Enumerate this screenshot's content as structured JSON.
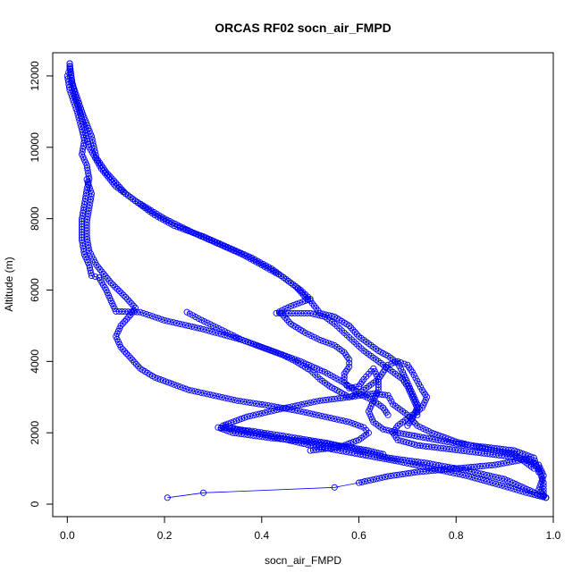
{
  "chart_data": {
    "type": "scatter",
    "title": "ORCAS RF02 socn_air_FMPD",
    "xlabel": "socn_air_FMPD",
    "ylabel": "Altitude (m)",
    "xlim": [
      -0.03,
      1.0
    ],
    "ylim": [
      -350,
      12650
    ],
    "xticks": [
      "0.0",
      "0.2",
      "0.4",
      "0.6",
      "0.8",
      "1.0"
    ],
    "xtick_values": [
      0.0,
      0.2,
      0.4,
      0.6,
      0.8,
      1.0
    ],
    "yticks": [
      "0",
      "2000",
      "4000",
      "6000",
      "8000",
      "10000",
      "12000"
    ],
    "ytick_values": [
      0,
      2000,
      4000,
      6000,
      8000,
      10000,
      12000
    ],
    "grid": false,
    "marker": "open-circle",
    "color": "#0000ff",
    "series": [
      {
        "points": [
          [
            0.206,
            180
          ],
          [
            0.28,
            320
          ],
          [
            0.55,
            470
          ],
          [
            0.6,
            600
          ],
          [
            0.66,
            780
          ],
          [
            0.72,
            900
          ],
          [
            0.8,
            1000
          ],
          [
            0.88,
            1100
          ],
          [
            0.94,
            1250
          ],
          [
            0.97,
            1100
          ],
          [
            0.98,
            800
          ],
          [
            0.97,
            400
          ],
          [
            0.985,
            180
          ]
        ]
      },
      {
        "points": [
          [
            0.985,
            180
          ],
          [
            0.95,
            300
          ],
          [
            0.9,
            500
          ],
          [
            0.82,
            800
          ],
          [
            0.75,
            1000
          ],
          [
            0.68,
            1200
          ],
          [
            0.62,
            1350
          ],
          [
            0.58,
            1450
          ],
          [
            0.5,
            1650
          ],
          [
            0.42,
            1900
          ],
          [
            0.35,
            2100
          ],
          [
            0.32,
            2200
          ],
          [
            0.37,
            2450
          ],
          [
            0.45,
            2700
          ],
          [
            0.52,
            2900
          ],
          [
            0.58,
            3000
          ],
          [
            0.63,
            3100
          ],
          [
            0.66,
            3050
          ],
          [
            0.67,
            2800
          ],
          [
            0.7,
            2500
          ],
          [
            0.72,
            2200
          ],
          [
            0.75,
            2000
          ],
          [
            0.8,
            1750
          ],
          [
            0.86,
            1550
          ],
          [
            0.92,
            1400
          ],
          [
            0.96,
            1000
          ]
        ]
      },
      {
        "points": [
          [
            0.985,
            180
          ],
          [
            0.9,
            700
          ],
          [
            0.82,
            950
          ],
          [
            0.74,
            1150
          ],
          [
            0.66,
            1300
          ],
          [
            0.6,
            1500
          ],
          [
            0.54,
            1700
          ],
          [
            0.45,
            1900
          ],
          [
            0.38,
            2050
          ],
          [
            0.31,
            2150
          ],
          [
            0.34,
            2000
          ],
          [
            0.42,
            1850
          ],
          [
            0.5,
            1750
          ],
          [
            0.58,
            1600
          ],
          [
            0.62,
            1500
          ],
          [
            0.65,
            1400
          ]
        ]
      },
      {
        "points": [
          [
            0.005,
            12350
          ],
          [
            0.005,
            12200
          ],
          [
            0.0,
            12000
          ],
          [
            0.005,
            11600
          ],
          [
            0.02,
            11000
          ],
          [
            0.03,
            10500
          ],
          [
            0.035,
            10200
          ],
          [
            0.03,
            9800
          ],
          [
            0.04,
            9500
          ],
          [
            0.045,
            9120
          ],
          [
            0.04,
            8800
          ],
          [
            0.035,
            8400
          ],
          [
            0.03,
            8000
          ],
          [
            0.03,
            7700
          ],
          [
            0.03,
            7400
          ],
          [
            0.035,
            7000
          ],
          [
            0.045,
            6700
          ],
          [
            0.05,
            6400
          ],
          [
            0.065,
            6350
          ],
          [
            0.08,
            6000
          ],
          [
            0.09,
            5700
          ],
          [
            0.1,
            5400
          ],
          [
            0.15,
            5380
          ],
          [
            0.2,
            5150
          ],
          [
            0.28,
            4900
          ],
          [
            0.36,
            4600
          ],
          [
            0.42,
            4300
          ],
          [
            0.48,
            4000
          ],
          [
            0.53,
            3700
          ],
          [
            0.57,
            3400
          ],
          [
            0.6,
            3100
          ],
          [
            0.63,
            2900
          ],
          [
            0.65,
            2700
          ],
          [
            0.66,
            2500
          ]
        ]
      },
      {
        "points": [
          [
            0.005,
            12350
          ],
          [
            0.01,
            11800
          ],
          [
            0.03,
            11000
          ],
          [
            0.05,
            10300
          ],
          [
            0.06,
            9700
          ],
          [
            0.08,
            9300
          ],
          [
            0.1,
            9000
          ],
          [
            0.12,
            8700
          ],
          [
            0.15,
            8400
          ],
          [
            0.18,
            8100
          ],
          [
            0.22,
            7800
          ],
          [
            0.28,
            7500
          ],
          [
            0.33,
            7200
          ],
          [
            0.38,
            6900
          ],
          [
            0.42,
            6600
          ],
          [
            0.45,
            6300
          ],
          [
            0.48,
            6000
          ],
          [
            0.5,
            5750
          ],
          [
            0.49,
            5700
          ],
          [
            0.46,
            5550
          ],
          [
            0.43,
            5350
          ],
          [
            0.5,
            5350
          ],
          [
            0.53,
            5250
          ],
          [
            0.55,
            5050
          ],
          [
            0.57,
            4800
          ],
          [
            0.59,
            4550
          ],
          [
            0.61,
            4300
          ],
          [
            0.63,
            4100
          ],
          [
            0.65,
            3900
          ],
          [
            0.67,
            3700
          ],
          [
            0.69,
            3500
          ],
          [
            0.7,
            3300
          ],
          [
            0.71,
            3000
          ],
          [
            0.72,
            2700
          ],
          [
            0.71,
            2400
          ],
          [
            0.7,
            2200
          ]
        ]
      },
      {
        "points": [
          [
            0.005,
            12200
          ],
          [
            0.015,
            11500
          ],
          [
            0.03,
            10800
          ],
          [
            0.045,
            10000
          ],
          [
            0.07,
            9400
          ],
          [
            0.1,
            8900
          ],
          [
            0.14,
            8500
          ],
          [
            0.2,
            8000
          ],
          [
            0.26,
            7600
          ],
          [
            0.31,
            7300
          ],
          [
            0.36,
            7000
          ],
          [
            0.4,
            6700
          ],
          [
            0.44,
            6400
          ],
          [
            0.47,
            6100
          ],
          [
            0.49,
            5800
          ],
          [
            0.5,
            5700
          ],
          [
            0.52,
            5350
          ],
          [
            0.55,
            5250
          ],
          [
            0.58,
            5000
          ],
          [
            0.6,
            4700
          ],
          [
            0.62,
            4500
          ],
          [
            0.64,
            4300
          ],
          [
            0.66,
            4150
          ],
          [
            0.68,
            3950
          ],
          [
            0.69,
            3700
          ],
          [
            0.7,
            3400
          ],
          [
            0.71,
            3100
          ],
          [
            0.72,
            2800
          ],
          [
            0.72,
            2500
          ]
        ]
      },
      {
        "points": [
          [
            0.04,
            9100
          ],
          [
            0.05,
            8700
          ],
          [
            0.045,
            8300
          ],
          [
            0.04,
            7900
          ],
          [
            0.04,
            7500
          ],
          [
            0.045,
            7100
          ],
          [
            0.06,
            6700
          ],
          [
            0.09,
            6200
          ],
          [
            0.12,
            5800
          ],
          [
            0.14,
            5500
          ],
          [
            0.13,
            5300
          ],
          [
            0.11,
            5000
          ],
          [
            0.1,
            4700
          ],
          [
            0.11,
            4400
          ],
          [
            0.13,
            4100
          ],
          [
            0.15,
            3800
          ],
          [
            0.18,
            3550
          ],
          [
            0.22,
            3350
          ],
          [
            0.25,
            3200
          ],
          [
            0.3,
            3050
          ],
          [
            0.35,
            2900
          ],
          [
            0.42,
            2750
          ],
          [
            0.48,
            2600
          ],
          [
            0.53,
            2450
          ],
          [
            0.58,
            2300
          ],
          [
            0.61,
            2150
          ],
          [
            0.62,
            2000
          ],
          [
            0.6,
            1800
          ],
          [
            0.56,
            1600
          ],
          [
            0.5,
            1500
          ]
        ]
      },
      {
        "points": [
          [
            0.246,
            5380
          ],
          [
            0.27,
            5200
          ],
          [
            0.3,
            5000
          ],
          [
            0.33,
            4800
          ],
          [
            0.36,
            4600
          ],
          [
            0.4,
            4400
          ],
          [
            0.44,
            4200
          ],
          [
            0.47,
            4000
          ],
          [
            0.5,
            3750
          ],
          [
            0.52,
            3500
          ],
          [
            0.54,
            3300
          ],
          [
            0.56,
            3150
          ],
          [
            0.58,
            3000
          ],
          [
            0.6,
            3100
          ],
          [
            0.62,
            3300
          ],
          [
            0.64,
            3500
          ],
          [
            0.65,
            3700
          ],
          [
            0.66,
            3900
          ],
          [
            0.68,
            4000
          ],
          [
            0.7,
            3900
          ],
          [
            0.71,
            3700
          ],
          [
            0.72,
            3450
          ],
          [
            0.73,
            3200
          ],
          [
            0.74,
            3000
          ],
          [
            0.73,
            2700
          ],
          [
            0.7,
            2400
          ],
          [
            0.68,
            2200
          ],
          [
            0.67,
            2000
          ],
          [
            0.68,
            1800
          ],
          [
            0.72,
            1650
          ],
          [
            0.78,
            1550
          ],
          [
            0.84,
            1450
          ],
          [
            0.9,
            1350
          ],
          [
            0.95,
            1250
          ],
          [
            0.97,
            1000
          ],
          [
            0.98,
            600
          ],
          [
            0.98,
            250
          ]
        ]
      },
      {
        "points": [
          [
            0.44,
            5350
          ],
          [
            0.46,
            5050
          ],
          [
            0.49,
            4800
          ],
          [
            0.52,
            4600
          ],
          [
            0.55,
            4450
          ],
          [
            0.57,
            4250
          ],
          [
            0.58,
            4050
          ],
          [
            0.58,
            3850
          ],
          [
            0.57,
            3650
          ],
          [
            0.57,
            3400
          ],
          [
            0.58,
            3250
          ],
          [
            0.6,
            3300
          ],
          [
            0.61,
            3500
          ],
          [
            0.62,
            3650
          ],
          [
            0.63,
            3800
          ],
          [
            0.64,
            3500
          ],
          [
            0.64,
            3200
          ],
          [
            0.63,
            2900
          ],
          [
            0.62,
            2600
          ],
          [
            0.63,
            2300
          ],
          [
            0.65,
            2100
          ],
          [
            0.68,
            2000
          ],
          [
            0.72,
            1900
          ],
          [
            0.8,
            1700
          ],
          [
            0.86,
            1600
          ],
          [
            0.92,
            1500
          ],
          [
            0.96,
            1300
          ],
          [
            0.97,
            900
          ]
        ]
      }
    ]
  }
}
